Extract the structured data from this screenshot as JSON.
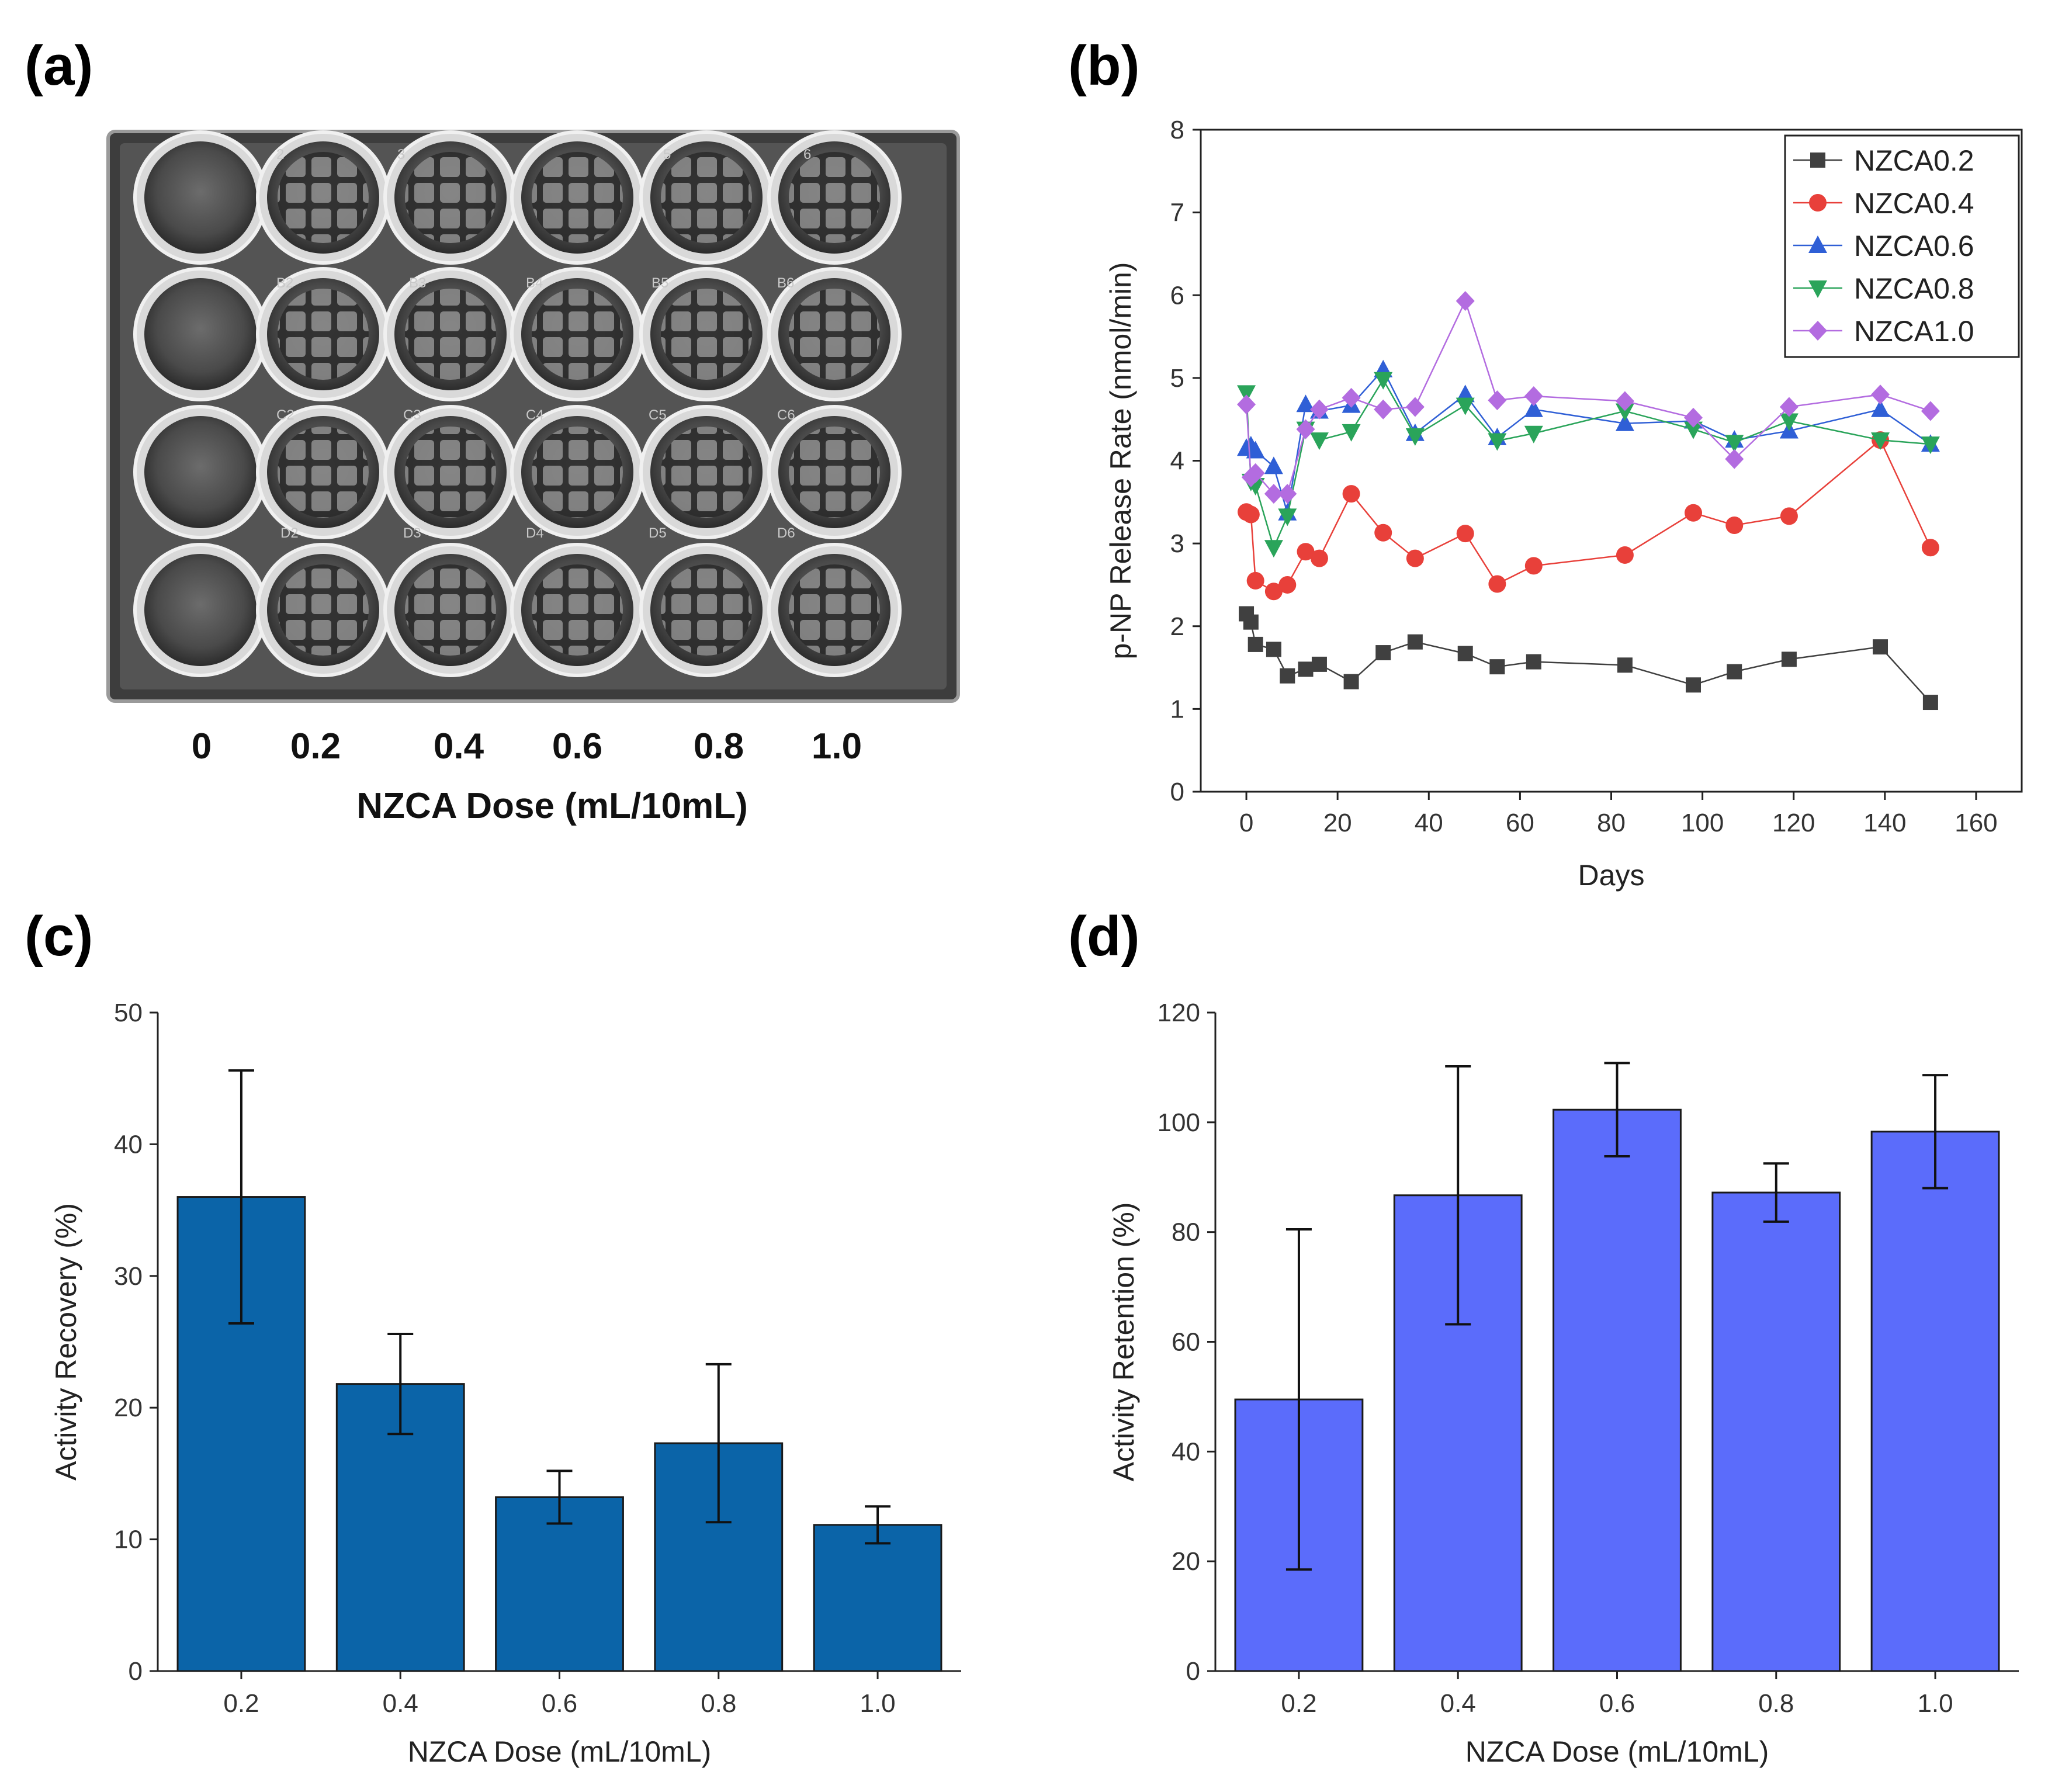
{
  "panels": {
    "a": {
      "label": "(a)",
      "dose_ticks": [
        "0",
        "0.2",
        "0.4",
        "0.6",
        "0.8",
        "1.0"
      ],
      "xlabel": "NZCA Dose (mL/10mL)",
      "photo": {
        "description_icon": "well-plate-photo",
        "well_labels": [
          "2",
          "3",
          "5",
          "6",
          "B2",
          "B3",
          "B4",
          "B5",
          "B6",
          "C2",
          "C3",
          "C4",
          "C5",
          "C6",
          "D2",
          "D3",
          "D4",
          "D5",
          "D6"
        ]
      }
    },
    "b": {
      "label": "(b)"
    },
    "c": {
      "label": "(c)"
    },
    "d": {
      "label": "(d)"
    }
  },
  "colors": {
    "NZCA0.2": "#404040",
    "NZCA0.4": "#e8403a",
    "NZCA0.6": "#2f5fd6",
    "NZCA0.8": "#2aa45a",
    "NZCA1.0": "#b36ce0",
    "bar_c": "#0b64a8",
    "bar_d": "#5b6cfb"
  },
  "chart_data": [
    {
      "id": "b",
      "type": "line",
      "title": "",
      "xlabel": "Days",
      "ylabel": "p-NP Release Rate (nmol/min)",
      "xlim": [
        -10,
        170
      ],
      "ylim": [
        0,
        8
      ],
      "xticks": [
        0,
        20,
        40,
        60,
        80,
        100,
        120,
        140,
        160
      ],
      "yticks": [
        0,
        1,
        2,
        3,
        4,
        5,
        6,
        7,
        8
      ],
      "legend_position": "top-right",
      "x": [
        0,
        1,
        2,
        6,
        9,
        13,
        16,
        23,
        30,
        37,
        48,
        55,
        63,
        83,
        98,
        107,
        119,
        139,
        150
      ],
      "series": [
        {
          "name": "NZCA0.2",
          "marker": "square",
          "values": [
            2.15,
            2.05,
            1.78,
            1.72,
            1.4,
            1.48,
            1.54,
            1.33,
            1.68,
            1.81,
            1.67,
            1.51,
            1.57,
            1.53,
            1.29,
            1.45,
            1.6,
            1.75,
            1.08
          ]
        },
        {
          "name": "NZCA0.4",
          "marker": "circle",
          "values": [
            3.38,
            3.35,
            2.55,
            2.42,
            2.5,
            2.9,
            2.82,
            3.6,
            3.13,
            2.82,
            3.12,
            2.51,
            2.73,
            2.86,
            3.37,
            3.22,
            3.33,
            4.25,
            2.95
          ]
        },
        {
          "name": "NZCA0.6",
          "marker": "triangle-up",
          "values": [
            4.15,
            4.18,
            4.12,
            3.93,
            3.37,
            4.68,
            4.6,
            4.67,
            5.1,
            4.33,
            4.8,
            4.28,
            4.62,
            4.45,
            4.48,
            4.25,
            4.36,
            4.62,
            4.2
          ]
        },
        {
          "name": "NZCA0.8",
          "marker": "triangle-down",
          "values": [
            4.82,
            3.75,
            3.7,
            2.95,
            3.33,
            4.38,
            4.25,
            4.35,
            4.98,
            4.3,
            4.67,
            4.24,
            4.33,
            4.6,
            4.38,
            4.22,
            4.48,
            4.25,
            4.2
          ]
        },
        {
          "name": "NZCA1.0",
          "marker": "diamond",
          "values": [
            4.68,
            3.8,
            3.85,
            3.6,
            3.6,
            4.38,
            4.62,
            4.76,
            4.62,
            4.65,
            5.93,
            4.73,
            4.78,
            4.72,
            4.52,
            4.02,
            4.65,
            4.8,
            4.6
          ]
        }
      ]
    },
    {
      "id": "c",
      "type": "bar",
      "title": "",
      "xlabel": "NZCA Dose (mL/10mL)",
      "ylabel": "Activity Recovery (%)",
      "ylim": [
        0,
        50
      ],
      "yticks": [
        0,
        10,
        20,
        30,
        40,
        50
      ],
      "categories": [
        "0.2",
        "0.4",
        "0.6",
        "0.8",
        "1.0"
      ],
      "values": [
        36.0,
        21.8,
        13.2,
        17.3,
        11.1
      ],
      "errors": [
        9.6,
        3.8,
        2.0,
        6.0,
        1.4
      ]
    },
    {
      "id": "d",
      "type": "bar",
      "title": "",
      "xlabel": "NZCA Dose (mL/10mL)",
      "ylabel": "Activity Retention (%)",
      "ylim": [
        0,
        120
      ],
      "yticks": [
        0,
        20,
        40,
        60,
        80,
        100,
        120
      ],
      "categories": [
        "0.2",
        "0.4",
        "0.6",
        "0.8",
        "1.0"
      ],
      "values": [
        49.5,
        86.7,
        102.3,
        87.2,
        98.3
      ],
      "errors": [
        31.0,
        23.5,
        8.5,
        5.3,
        10.3
      ]
    }
  ]
}
